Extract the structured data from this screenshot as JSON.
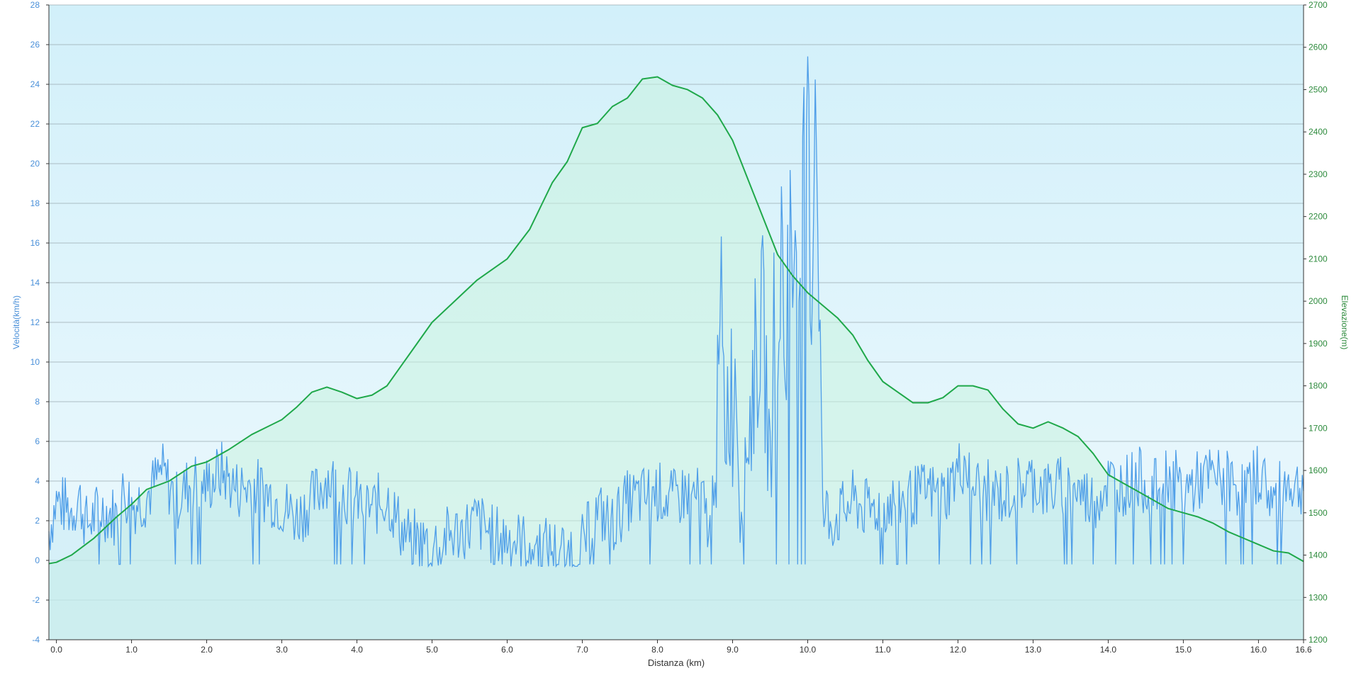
{
  "chart_data": {
    "type": "line",
    "x_label": "Distanza  (km)",
    "y_left_label": "Velocità(km/h)",
    "y_right_label": "Elevazione(m)",
    "x_ticks": [
      "0.0",
      "1.0",
      "2.0",
      "3.0",
      "4.0",
      "5.0",
      "6.0",
      "7.0",
      "8.0",
      "9.0",
      "10.0",
      "11.0",
      "12.0",
      "13.0",
      "14.0",
      "15.0",
      "16.0",
      "16.6"
    ],
    "x_tick_values": [
      0,
      1,
      2,
      3,
      4,
      5,
      6,
      7,
      8,
      9,
      10,
      11,
      12,
      13,
      14,
      15,
      16,
      16.6
    ],
    "xlim": [
      -0.1,
      16.6
    ],
    "y_left_ticks": [
      "-4",
      "-2",
      "0",
      "2",
      "4",
      "6",
      "8",
      "10",
      "12",
      "14",
      "16",
      "18",
      "20",
      "22",
      "24",
      "26",
      "28"
    ],
    "y_left_lim": [
      -4,
      28
    ],
    "y_right_ticks": [
      "1200",
      "1300",
      "1400",
      "1500",
      "1600",
      "1700",
      "1800",
      "1900",
      "2000",
      "2100",
      "2200",
      "2300",
      "2400",
      "2500",
      "2600",
      "2700"
    ],
    "y_right_lim": [
      1200,
      2700
    ],
    "grid": true,
    "colors": {
      "speed": "#4f9ee8",
      "elevation": "#1fa84a",
      "plot_top": "#d2f0fa",
      "plot_bottom": "#eef9fd",
      "grid": "#9aaab0",
      "axis": "#333333",
      "left_ticks": "#4a90d9",
      "right_ticks": "#2e8b3d"
    },
    "series": [
      {
        "axis": "right",
        "x": [
          -0.1,
          0.0,
          0.2,
          0.5,
          0.8,
          1.0,
          1.2,
          1.5,
          1.8,
          2.0,
          2.3,
          2.6,
          3.0,
          3.2,
          3.4,
          3.6,
          3.8,
          4.0,
          4.2,
          4.4,
          4.6,
          4.8,
          5.0,
          5.3,
          5.6,
          6.0,
          6.3,
          6.6,
          6.8,
          7.0,
          7.2,
          7.4,
          7.6,
          7.8,
          8.0,
          8.2,
          8.4,
          8.6,
          8.8,
          9.0,
          9.2,
          9.4,
          9.6,
          9.8,
          10.0,
          10.2,
          10.4,
          10.6,
          10.8,
          11.0,
          11.2,
          11.4,
          11.6,
          11.8,
          12.0,
          12.2,
          12.4,
          12.6,
          12.8,
          13.0,
          13.2,
          13.4,
          13.6,
          13.8,
          14.0,
          14.2,
          14.4,
          14.6,
          14.8,
          15.0,
          15.2,
          15.4,
          15.6,
          15.8,
          16.0,
          16.2,
          16.4,
          16.6
        ],
        "values": [
          1380,
          1383,
          1400,
          1440,
          1490,
          1520,
          1555,
          1575,
          1610,
          1620,
          1650,
          1685,
          1720,
          1750,
          1785,
          1797,
          1785,
          1770,
          1778,
          1800,
          1850,
          1900,
          1950,
          2000,
          2050,
          2100,
          2170,
          2280,
          2330,
          2410,
          2420,
          2460,
          2480,
          2525,
          2530,
          2510,
          2500,
          2480,
          2440,
          2380,
          2290,
          2200,
          2110,
          2060,
          2020,
          1990,
          1960,
          1920,
          1860,
          1810,
          1785,
          1760,
          1760,
          1772,
          1800,
          1800,
          1790,
          1745,
          1710,
          1700,
          1715,
          1700,
          1680,
          1640,
          1590,
          1570,
          1550,
          1530,
          1510,
          1500,
          1490,
          1475,
          1455,
          1440,
          1425,
          1410,
          1405,
          1385
        ]
      },
      {
        "axis": "left",
        "x": [
          -0.1,
          0.0,
          0.2,
          0.3,
          0.4,
          0.6,
          0.8,
          0.9,
          1.0,
          1.2,
          1.4,
          1.6,
          1.8,
          2.0,
          2.2,
          2.4,
          2.6,
          2.8,
          3.0,
          3.2,
          3.4,
          3.6,
          3.8,
          4.0,
          4.2,
          4.4,
          4.6,
          4.8,
          5.0,
          5.2,
          5.4,
          5.6,
          5.8,
          6.0,
          6.2,
          6.4,
          6.6,
          6.8,
          7.0,
          7.2,
          7.4,
          7.6,
          7.8,
          8.0,
          8.2,
          8.4,
          8.6,
          8.7,
          8.8,
          8.85,
          8.9,
          8.95,
          9.0,
          9.05,
          9.1,
          9.2,
          9.3,
          9.4,
          9.5,
          9.55,
          9.6,
          9.65,
          9.7,
          9.75,
          9.8,
          9.85,
          9.9,
          9.95,
          10.0,
          10.05,
          10.1,
          10.15,
          10.2,
          10.25,
          10.3,
          10.4,
          10.6,
          10.8,
          11.0,
          11.2,
          11.4,
          11.6,
          11.8,
          12.0,
          12.1,
          12.2,
          12.4,
          12.6,
          12.8,
          13.0,
          13.2,
          13.4,
          13.6,
          13.8,
          14.0,
          14.2,
          14.4,
          14.6,
          14.8,
          15.0,
          15.2,
          15.4,
          15.6,
          15.8,
          16.0,
          16.1,
          16.2,
          16.4,
          16.6
        ],
        "values": [
          1.5,
          3.0,
          2.5,
          3.2,
          1.8,
          2.6,
          2.2,
          3.5,
          2.8,
          3.2,
          4.5,
          3.0,
          4.0,
          3.8,
          4.5,
          3.6,
          3.8,
          3.4,
          2.8,
          2.2,
          3.0,
          4.2,
          3.5,
          3.0,
          2.6,
          3.2,
          1.5,
          1.0,
          0.8,
          1.2,
          1.5,
          2.0,
          1.3,
          1.2,
          0.9,
          0.8,
          0.6,
          0.5,
          0.8,
          2.5,
          1.8,
          3.0,
          3.2,
          3.5,
          3.0,
          3.5,
          3.0,
          1.5,
          7.0,
          12.5,
          6.0,
          9.0,
          8.0,
          10.0,
          2.0,
          6.0,
          10.0,
          12.0,
          5.0,
          13.0,
          8.0,
          17.0,
          9.0,
          18.0,
          14.0,
          19.0,
          11.0,
          20.0,
          24.0,
          12.0,
          25.0,
          15.0,
          2.0,
          2.5,
          2.0,
          2.2,
          3.0,
          2.5,
          2.8,
          3.0,
          3.2,
          3.5,
          3.2,
          4.5,
          5.0,
          3.8,
          3.5,
          3.2,
          3.8,
          4.0,
          3.5,
          3.8,
          3.5,
          3.0,
          4.0,
          3.8,
          4.2,
          3.5,
          4.5,
          3.5,
          4.0,
          4.2,
          4.0,
          3.5,
          4.5,
          3.8,
          3.0,
          4.0,
          3.5
        ]
      }
    ]
  }
}
